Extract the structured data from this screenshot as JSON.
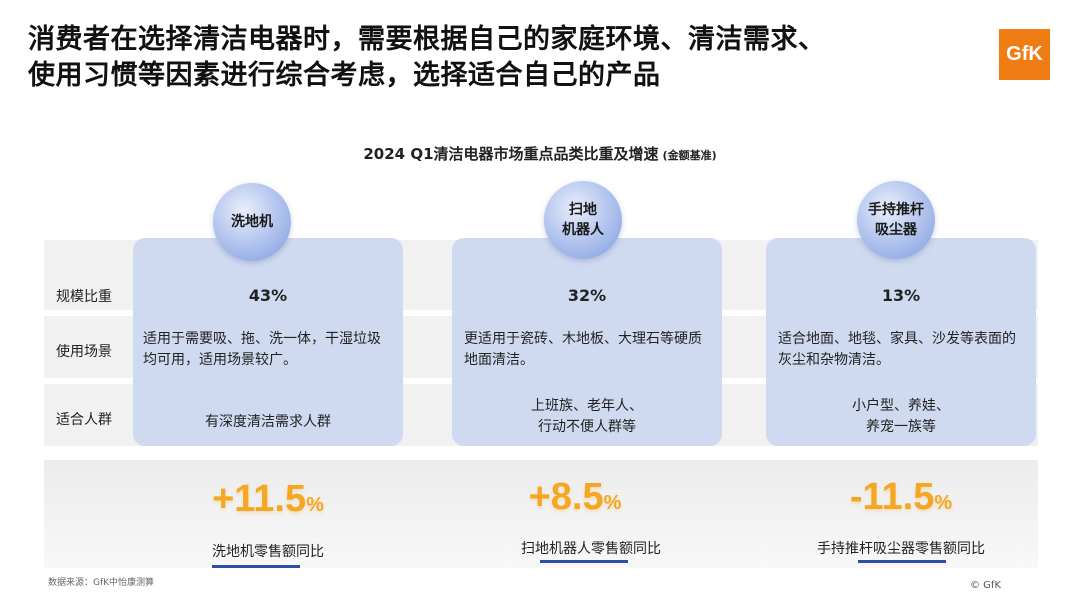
{
  "headline_line1": "消费者在选择清洁电器时，需要根据自己的家庭环境、清洁需求、",
  "headline_line2": "使用习惯等因素进行综合考虑，选择适合自己的产品",
  "logo_text": "GfK",
  "chart_data": {
    "type": "table",
    "title": "2024 Q1清洁电器市场重点品类比重及增速",
    "title_note": "(金额基准)",
    "row_labels": [
      "规模比重",
      "使用场景",
      "适合人群"
    ],
    "categories": [
      {
        "name_lines": [
          "洗地机"
        ],
        "share": "43%",
        "share_value": 43,
        "scene": "适用于需要吸、拖、洗一体，干湿垃圾均可用，适用场景较广。",
        "crowd": "有深度清洁需求人群",
        "growth_num": "+11.5",
        "growth_unit": "%",
        "growth_value": 11.5,
        "growth_label": "洗地机零售额同比"
      },
      {
        "name_lines": [
          "扫地",
          "机器人"
        ],
        "share": "32%",
        "share_value": 32,
        "scene": "更适用于瓷砖、木地板、大理石等硬质地面清洁。",
        "crowd": "上班族、老年人、行动不便人群等",
        "growth_num": "+8.5",
        "growth_unit": "%",
        "growth_value": 8.5,
        "growth_label": "扫地机器人零售额同比"
      },
      {
        "name_lines": [
          "手持推杆",
          "吸尘器"
        ],
        "share": "13%",
        "share_value": 13,
        "scene": "适合地面、地毯、家具、沙发等表面的灰尘和杂物清洁。",
        "crowd": "小户型、养娃、养宠一族等",
        "growth_num": "-11.5",
        "growth_unit": "%",
        "growth_value": -11.5,
        "growth_label": "手持推杆吸尘器零售额同比"
      }
    ]
  },
  "source": "数据来源：GfK中怡康测算",
  "copyright": "© GfK",
  "colors": {
    "accent": "#2e4fa3",
    "growth": "#f5a623",
    "card": "#cfdaf0",
    "logo": "#f07c14"
  }
}
